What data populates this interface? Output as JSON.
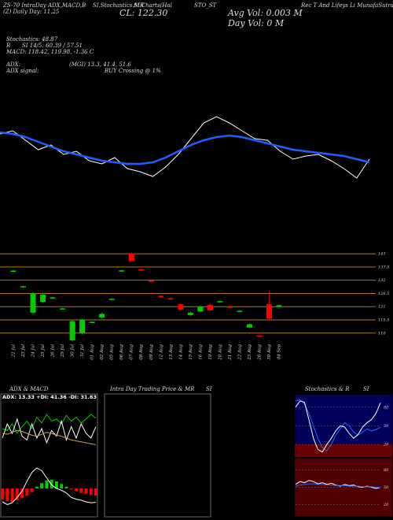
{
  "header": {
    "line1": [
      "ZS-70 IntraDay ADX,MACD,B",
      "SI,Stochastics,MR",
      "SI Charts(Hal",
      "STO_ST",
      "Rec T And Lifeys Li MunafaSutra.com"
    ],
    "day": "(Z) Daily Day: 11.25",
    "close": "CL: 122.30",
    "avg_vol": "Avg Vol: 0.003 M",
    "day_vol": "Day Vol: 0  M",
    "indicators": [
      "Stochastics: 48.87",
      "R",
      "SI 14/5: 60.39 / 57.51",
      "MACD: 118.42, 119.98, -1.36  C",
      "ADX:",
      "(MGI) 13.3, 41.4, 51.6",
      "ADX signal:",
      "BUY Crossing @ 1%"
    ]
  },
  "intraday": {
    "title": "Intra Day Trading Price & MR",
    "subtitle": "SI"
  },
  "chart_data": [
    {
      "type": "line",
      "ylim": [
        110,
        140
      ],
      "series": [
        {
          "color": "#ffffff",
          "values": [
            131,
            132.2,
            128.6,
            125,
            126.8,
            123.2,
            124.4,
            120.8,
            119.6,
            122,
            117.8,
            116.6,
            114.8,
            118.4,
            123.2,
            129.2,
            135.2,
            137.6,
            135.2,
            132.2,
            129.2,
            128.6,
            124.4,
            121.4,
            122.6,
            123.2,
            120.8,
            117.8,
            114.2,
            121.4
          ]
        },
        {
          "color": "#1f5fff",
          "values": [
            131.6,
            131,
            129.8,
            128,
            126.2,
            124.4,
            123.2,
            122,
            120.8,
            120.2,
            119.6,
            119.6,
            120.2,
            122,
            124.4,
            126.8,
            128.6,
            129.8,
            130.4,
            129.8,
            128.6,
            127.4,
            126.2,
            125,
            124.4,
            123.8,
            123.2,
            122.6,
            121.4,
            120.2
          ]
        }
      ]
    },
    {
      "type": "candlestick",
      "ylim": [
        106,
        145
      ],
      "yticks": [
        143,
        137.5,
        132,
        126.5,
        121,
        115.5,
        110
      ],
      "up_color": "#00cc00",
      "down_color": "#ff0000",
      "grid_color": "#b07818",
      "categories": [
        "22 Jul",
        "23 Jul",
        "24 Jul",
        "25 Jul",
        "26 Jul",
        "29 Jul",
        "30 Jul",
        "31 Jul",
        "01 Aug",
        "02 Aug",
        "05 Aug",
        "06 Aug",
        "07 Aug",
        "08 Aug",
        "09 Aug",
        "12 Aug",
        "13 Aug",
        "14 Aug",
        "15 Aug",
        "16 Aug",
        "19 Aug",
        "20 Aug",
        "21 Aug",
        "22 Aug",
        "23 Aug",
        "26 Aug",
        "30 Aug",
        "04 Sep"
      ],
      "open": [
        135.5,
        129.2,
        118.5,
        123,
        124.6,
        120,
        107,
        110,
        114.4,
        116.5,
        124,
        135.8,
        143,
        136.5,
        131.8,
        125.5,
        124.5,
        122,
        117.5,
        119,
        121.8,
        123,
        121,
        119,
        112.3,
        109,
        122,
        121.3
      ],
      "high": [
        136.3,
        129.8,
        127,
        126.5,
        125.2,
        120.6,
        115.5,
        116,
        115,
        118.5,
        124.6,
        136.4,
        143.5,
        137,
        132.2,
        125.8,
        125,
        122.4,
        119,
        121.5,
        122.5,
        123.6,
        121.4,
        119.6,
        114,
        109.4,
        127,
        121.9
      ],
      "low": [
        135.3,
        128.9,
        118,
        122.5,
        124.3,
        119.7,
        106.5,
        109.5,
        114.1,
        116,
        123.7,
        135.5,
        139.5,
        135.9,
        131.2,
        124.9,
        123.7,
        119.5,
        117.2,
        118.7,
        119,
        122.7,
        120.4,
        118.7,
        112,
        108.5,
        115.5,
        121
      ],
      "close": [
        136,
        129.5,
        126.5,
        126,
        124.9,
        120.3,
        115,
        115.5,
        114.7,
        118,
        124.3,
        136.1,
        140,
        136.2,
        131.5,
        125.2,
        124,
        119.8,
        118.5,
        121,
        119.5,
        123.3,
        120.7,
        119.3,
        113.7,
        108.8,
        116,
        121.6
      ]
    },
    {
      "type": "line",
      "title": "ADX & MACD",
      "label": "ADX: 13.33 +DI: 41.36 -DI: 31.63",
      "ylim": [
        0,
        60
      ],
      "series": [
        {
          "color": "#00cc00",
          "values": [
            30,
            28,
            35,
            25,
            32,
            38,
            30,
            42,
            36,
            45,
            38,
            40,
            35,
            44,
            38,
            42,
            36,
            40,
            45,
            41
          ]
        },
        {
          "color": "#ffffff",
          "values": [
            20,
            35,
            25,
            40,
            22,
            18,
            35,
            20,
            30,
            15,
            28,
            22,
            38,
            18,
            32,
            20,
            35,
            25,
            20,
            32
          ]
        },
        {
          "color": "#c8a060",
          "values": [
            25,
            24,
            26,
            28,
            27,
            25,
            23,
            22,
            24,
            26,
            25,
            23,
            22,
            20,
            18,
            17,
            16,
            15,
            14,
            13
          ]
        }
      ]
    },
    {
      "type": "macd",
      "ylim": [
        -3,
        3
      ],
      "up_color": "#00cc00",
      "down_color": "#ff0000",
      "series": [
        {
          "values": [
            -1.2,
            -1.4,
            -1.5,
            -1.3,
            -1.1,
            -0.8,
            -0.4,
            0.2,
            0.6,
            0.9,
            1.0,
            0.8,
            0.5,
            0.2,
            -0.1,
            -0.3,
            -0.5,
            -0.6,
            -0.7,
            -0.8
          ]
        },
        {
          "color": "#ffffff",
          "values": [
            -1.5,
            -1.8,
            -1.6,
            -1,
            -0.3,
            0.8,
            1.8,
            2.3,
            2.0,
            1.2,
            0.4,
            0,
            -0.2,
            -0.5,
            -1,
            -1.2,
            -1.3,
            -1.5,
            -1.6,
            -1.56
          ]
        }
      ]
    },
    {
      "type": "line",
      "title": "Stochastics & R",
      "subtitle": "SI",
      "ylim": [
        0,
        100
      ],
      "yticks": [
        20,
        50,
        80
      ],
      "background": "#00005a",
      "series": [
        {
          "color": "#2266ff",
          "values": [
            90,
            92,
            85,
            70,
            50,
            30,
            15,
            10,
            20,
            35,
            45,
            55,
            50,
            40,
            35,
            40,
            45,
            42,
            44,
            48
          ]
        },
        {
          "color": "#ffffff",
          "values": [
            80,
            90,
            88,
            60,
            30,
            12,
            8,
            20,
            30,
            42,
            50,
            48,
            38,
            30,
            36,
            48,
            55,
            60,
            70,
            87
          ]
        }
      ]
    },
    {
      "type": "line",
      "ylim": [
        0,
        100
      ],
      "yticks": [
        20,
        50,
        80
      ],
      "background": "#500000",
      "series": [
        {
          "color": "#ffffff",
          "values": [
            55,
            60,
            58,
            62,
            60,
            56,
            58,
            55,
            57,
            54,
            52,
            55,
            53,
            54,
            51,
            50,
            52,
            50,
            48,
            50
          ]
        },
        {
          "color": "#2266ff",
          "values": [
            52,
            54,
            55,
            56,
            56,
            55,
            55,
            54,
            54,
            53,
            53,
            53,
            52,
            52,
            52,
            51,
            51,
            51,
            50,
            50
          ]
        }
      ]
    }
  ]
}
